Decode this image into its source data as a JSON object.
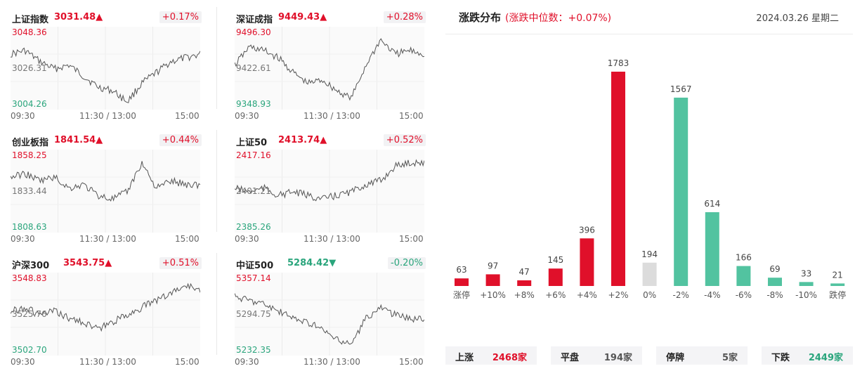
{
  "time_labels": [
    "09:30",
    "11:30 / 13:00",
    "15:00"
  ],
  "indices": [
    {
      "name": "上证指数",
      "value": "3031.48▲",
      "pct": "+0.17%",
      "dir": "up",
      "high": "3048.36",
      "mid": "3026.31",
      "low": "3004.26"
    },
    {
      "name": "深证成指",
      "value": "9449.43▲",
      "pct": "+0.28%",
      "dir": "up",
      "high": "9496.30",
      "mid": "9422.61",
      "low": "9348.93"
    },
    {
      "name": "创业板指",
      "value": "1841.54▲",
      "pct": "+0.44%",
      "dir": "up",
      "high": "1858.25",
      "mid": "1833.44",
      "low": "1808.63"
    },
    {
      "name": "上证50",
      "value": "2413.74▲",
      "pct": "+0.52%",
      "dir": "up",
      "high": "2417.16",
      "mid": "2401.21",
      "low": "2385.26"
    },
    {
      "name": "沪深300",
      "value": "3543.75▲",
      "pct": "+0.51%",
      "dir": "up",
      "high": "3548.83",
      "mid": "3525.76",
      "low": "3502.70"
    },
    {
      "name": "中证500",
      "value": "5284.42▼",
      "pct": "-0.20%",
      "dir": "down",
      "high": "5357.14",
      "mid": "5294.75",
      "low": "5232.35"
    }
  ],
  "distribution": {
    "title": "涨跌分布",
    "subtitle": "(涨跌中位数：+0.07%)",
    "date": "2024.03.26 星期二"
  },
  "chart_data": {
    "type": "bar",
    "title": "涨跌分布",
    "categories": [
      "涨停",
      "+10%",
      "+8%",
      "+6%",
      "+4%",
      "+2%",
      "0%",
      "-2%",
      "-4%",
      "-6%",
      "-8%",
      "-10%",
      "跌停"
    ],
    "values": [
      63,
      97,
      47,
      145,
      396,
      1783,
      194,
      1567,
      614,
      166,
      69,
      33,
      21
    ],
    "bar_colors": [
      "#e0102a",
      "#e0102a",
      "#e0102a",
      "#e0102a",
      "#e0102a",
      "#e0102a",
      "#dcdcdc",
      "#52c3a0",
      "#52c3a0",
      "#52c3a0",
      "#52c3a0",
      "#52c3a0",
      "#52c3a0"
    ],
    "ylim": [
      0,
      1783
    ],
    "grid": false
  },
  "summary": [
    {
      "label": "上涨",
      "value": "2468家",
      "color": "#e0102a"
    },
    {
      "label": "平盘",
      "value": "194家",
      "color": "#555555"
    },
    {
      "label": "停牌",
      "value": "5家",
      "color": "#555555"
    },
    {
      "label": "下跌",
      "value": "2449家",
      "color": "#2aa57c"
    }
  ]
}
